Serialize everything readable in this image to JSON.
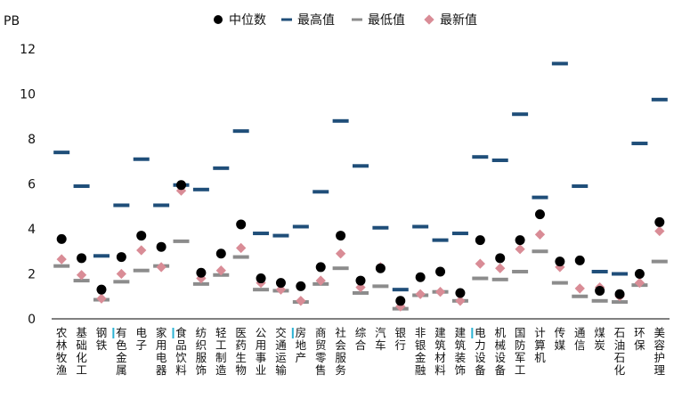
{
  "chart_data": {
    "type": "scatter",
    "ylabel": "PB",
    "ylim": [
      0,
      12
    ],
    "yticks": [
      0,
      2,
      4,
      6,
      8,
      10,
      12
    ],
    "grid": false,
    "legend_position": "top",
    "colors": {
      "median": "#000000",
      "max": "#1f4e79",
      "min": "#8c8c8c",
      "latest": "#d98c96",
      "marker_accent": "#2bb3d4"
    },
    "categories": [
      "农林牧渔",
      "基础化工",
      "钢铁",
      "有色金属",
      "电子",
      "家用电器",
      "食品饮料",
      "纺织服饰",
      "轻工制造",
      "医药生物",
      "公用事业",
      "交通运输",
      "房地产",
      "商贸零售",
      "社会服务",
      "综合",
      "汽车",
      "银行",
      "非银金融",
      "建筑材料",
      "建筑装饰",
      "电力设备",
      "机械设备",
      "国防军工",
      "计算机",
      "传媒",
      "通信",
      "煤炭",
      "石油石化",
      "环保",
      "美容护理"
    ],
    "accent_categories": [
      "有色金属",
      "食品饮料",
      "房地产",
      "电力设备"
    ],
    "series": [
      {
        "name": "中位数",
        "marker": "circle",
        "values": [
          3.55,
          2.7,
          1.3,
          2.75,
          3.7,
          3.2,
          5.95,
          2.05,
          2.9,
          4.2,
          1.8,
          1.6,
          1.45,
          2.3,
          3.7,
          1.7,
          2.25,
          0.8,
          1.85,
          2.1,
          1.15,
          3.5,
          2.7,
          3.5,
          4.65,
          2.55,
          2.6,
          1.25,
          1.1,
          2.0,
          4.3
        ]
      },
      {
        "name": "最高值",
        "marker": "dash",
        "values": [
          7.4,
          5.9,
          2.8,
          5.05,
          7.1,
          5.05,
          5.95,
          5.75,
          6.7,
          8.35,
          3.8,
          3.7,
          4.1,
          5.65,
          8.8,
          6.8,
          4.05,
          1.3,
          4.1,
          3.5,
          3.8,
          7.2,
          7.05,
          9.1,
          5.4,
          11.35,
          5.9,
          2.1,
          2.0,
          7.8,
          9.75
        ]
      },
      {
        "name": "最低值",
        "marker": "dash",
        "values": [
          2.35,
          1.7,
          0.85,
          1.65,
          2.15,
          2.35,
          3.45,
          1.55,
          1.95,
          2.75,
          1.3,
          1.25,
          0.75,
          1.55,
          2.25,
          1.15,
          1.45,
          0.45,
          1.05,
          1.2,
          0.8,
          1.8,
          1.75,
          2.1,
          3.0,
          1.6,
          1.0,
          0.8,
          0.75,
          1.5,
          2.55
        ]
      },
      {
        "name": "最新值",
        "marker": "diamond",
        "values": [
          2.65,
          1.95,
          0.9,
          2.0,
          3.05,
          2.3,
          5.7,
          1.8,
          2.15,
          3.15,
          1.6,
          1.3,
          0.8,
          1.7,
          2.9,
          1.4,
          2.3,
          0.55,
          1.1,
          1.2,
          0.8,
          2.45,
          2.25,
          3.1,
          3.75,
          2.3,
          1.35,
          1.4,
          1.0,
          1.6,
          3.9
        ]
      }
    ]
  }
}
